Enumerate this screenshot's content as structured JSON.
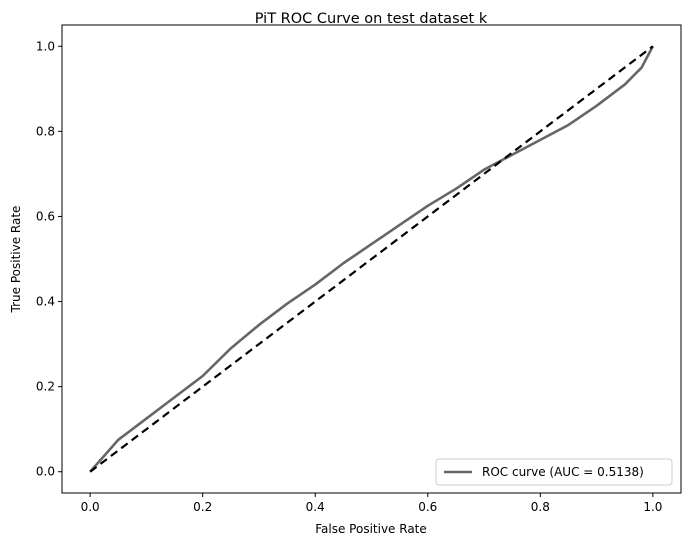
{
  "chart_data": {
    "type": "line",
    "title": "PiT ROC Curve on test dataset k",
    "xlabel": "False Positive Rate",
    "ylabel": "True Positive Rate",
    "xlim": [
      -0.05,
      1.05
    ],
    "ylim": [
      -0.05,
      1.05
    ],
    "xticks": [
      "0.0",
      "0.2",
      "0.4",
      "0.6",
      "0.8",
      "1.0"
    ],
    "yticks": [
      "0.0",
      "0.2",
      "0.4",
      "0.6",
      "0.8",
      "1.0"
    ],
    "grid": false,
    "legend_position": "lower-right",
    "series": [
      {
        "name": "ROC curve (AUC = 0.5138)",
        "color": "#666666",
        "style": "solid",
        "x": [
          0.0,
          0.01,
          0.02,
          0.03,
          0.05,
          0.08,
          0.1,
          0.15,
          0.2,
          0.25,
          0.3,
          0.35,
          0.4,
          0.45,
          0.5,
          0.55,
          0.6,
          0.65,
          0.7,
          0.75,
          0.8,
          0.85,
          0.9,
          0.95,
          0.98,
          1.0
        ],
        "y": [
          0.0,
          0.015,
          0.03,
          0.045,
          0.075,
          0.105,
          0.125,
          0.175,
          0.225,
          0.29,
          0.345,
          0.395,
          0.44,
          0.49,
          0.535,
          0.58,
          0.625,
          0.665,
          0.71,
          0.745,
          0.78,
          0.815,
          0.86,
          0.91,
          0.95,
          1.0
        ]
      },
      {
        "name": "",
        "color": "#000000",
        "style": "dashed",
        "x": [
          0.0,
          1.0
        ],
        "y": [
          0.0,
          1.0
        ]
      }
    ]
  }
}
